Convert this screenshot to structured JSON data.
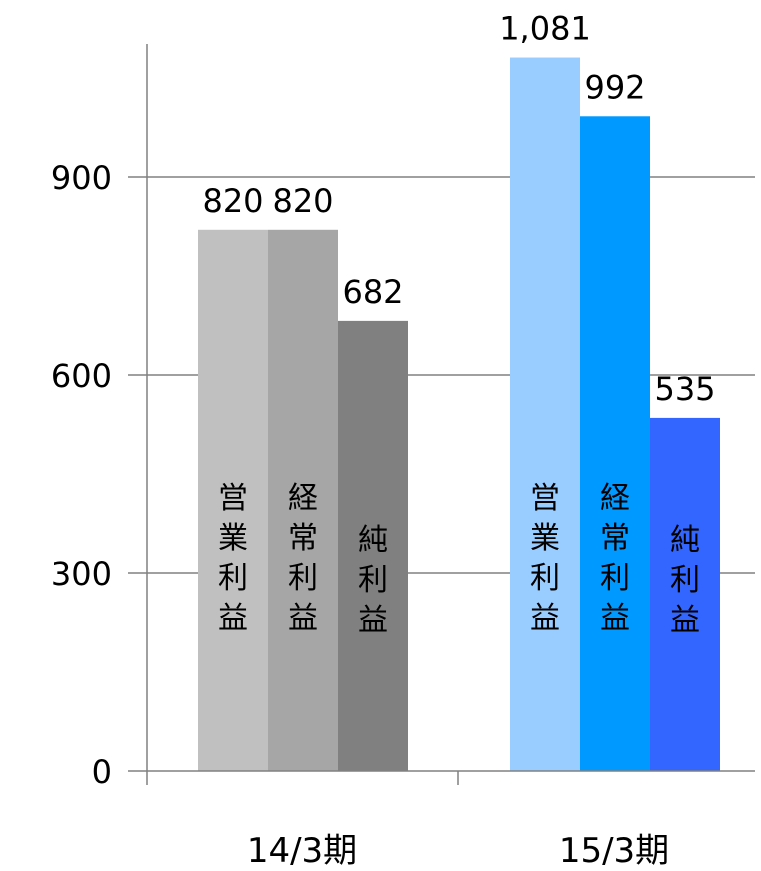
{
  "chart_data": {
    "type": "bar",
    "categories": [
      "14/3期",
      "15/3期"
    ],
    "series": [
      {
        "name": "営業利益",
        "values": [
          820,
          1081
        ],
        "colors": [
          "#c0c0c0",
          "#99ccff"
        ]
      },
      {
        "name": "経常利益",
        "values": [
          820,
          992
        ],
        "colors": [
          "#a6a6a6",
          "#0099ff"
        ]
      },
      {
        "name": "純利益",
        "values": [
          682,
          535
        ],
        "colors": [
          "#808080",
          "#3366ff"
        ]
      }
    ],
    "data_labels": [
      [
        "820",
        "1,081"
      ],
      [
        "820",
        "992"
      ],
      [
        "682",
        "535"
      ]
    ],
    "y_ticks": [
      0,
      300,
      600,
      900
    ],
    "y_tick_labels": [
      "0",
      "300",
      "600",
      "900"
    ],
    "ylim": [
      0,
      1100
    ],
    "grid": true,
    "colors": {
      "axis": "#808080",
      "grid": "#808080",
      "text": "#000000"
    }
  }
}
